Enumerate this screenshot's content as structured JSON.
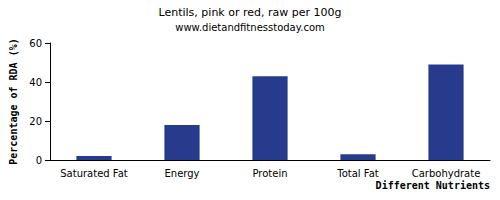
{
  "chart_data": {
    "type": "bar",
    "title": "Lentils, pink or red, raw per 100g",
    "subtitle": "www.dietandfitnesstoday.com",
    "x_label": "Different Nutrients",
    "y_label": "Percentage of RDA (%)",
    "categories": [
      "Saturated Fat",
      "Energy",
      "Protein",
      "Total Fat",
      "Carbohydrate"
    ],
    "values": [
      2,
      18,
      43,
      3,
      49
    ],
    "color": "#273a8c",
    "ylim": [
      0,
      60
    ],
    "yticks": [
      0,
      20,
      40,
      60
    ],
    "grid": false
  }
}
